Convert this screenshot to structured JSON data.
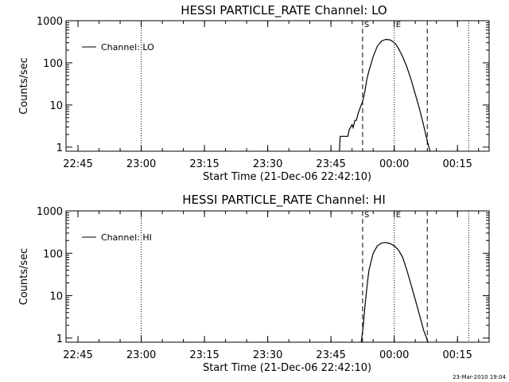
{
  "timestamp": "23-Mar-2010 19:04",
  "chart_data": [
    {
      "type": "line",
      "title": "HESSI PARTICLE_RATE Channel: LO",
      "xlabel": "Start Time (21-Dec-06 22:42:10)",
      "ylabel": "Counts/sec",
      "yscale": "log",
      "ylim": [
        0.8,
        1000
      ],
      "xlim": [
        "22:42:10",
        "00:22:30"
      ],
      "xticks": [
        "22:45",
        "23:00",
        "23:15",
        "23:30",
        "23:45",
        "00:00",
        "00:15"
      ],
      "yticks": [
        "1",
        "10",
        "100",
        "1000"
      ],
      "legend": {
        "position": "top-left",
        "entries": [
          "Channel: LO"
        ]
      },
      "grid": false,
      "markers": [
        {
          "label": "S",
          "time": "23:52:30",
          "style": "dashed"
        },
        {
          "label": "E",
          "time": "00:00:00",
          "style": "dotted"
        },
        {
          "time": "00:07:50",
          "style": "dashed"
        },
        {
          "time": "23:00:00",
          "style": "dotted"
        },
        {
          "time": "00:17:40",
          "style": "dotted"
        }
      ],
      "series": [
        {
          "name": "Channel: LO",
          "x": [
            "23:47:00",
            "23:47:10",
            "23:49:00",
            "23:49:20",
            "23:50:00",
            "23:50:15",
            "23:50:40",
            "23:51:00",
            "23:51:30",
            "23:52:00",
            "23:52:30",
            "23:53:00",
            "23:53:30",
            "23:54:00",
            "23:55:00",
            "23:56:00",
            "23:57:00",
            "23:58:00",
            "23:59:00",
            "23:59:40",
            "00:00:20",
            "00:01:00",
            "00:02:00",
            "00:03:00",
            "00:04:00",
            "00:05:00",
            "00:06:00",
            "00:07:00",
            "00:08:00",
            "00:08:30"
          ],
          "values": [
            0.8,
            1.8,
            1.8,
            2.6,
            3.4,
            2.9,
            4.3,
            4.3,
            6.6,
            9.0,
            12,
            20,
            40,
            65,
            140,
            250,
            330,
            360,
            350,
            320,
            280,
            220,
            140,
            80,
            40,
            18,
            8,
            3.2,
            1.2,
            0.8
          ]
        }
      ]
    },
    {
      "type": "line",
      "title": "HESSI PARTICLE_RATE Channel: HI",
      "xlabel": "Start Time (21-Dec-06 22:42:10)",
      "ylabel": "Counts/sec",
      "yscale": "log",
      "ylim": [
        0.8,
        1000
      ],
      "xlim": [
        "22:42:10",
        "00:22:30"
      ],
      "xticks": [
        "22:45",
        "23:00",
        "23:15",
        "23:30",
        "23:45",
        "00:00",
        "00:15"
      ],
      "yticks": [
        "1",
        "10",
        "100",
        "1000"
      ],
      "legend": {
        "position": "top-left",
        "entries": [
          "Channel: HI"
        ]
      },
      "grid": false,
      "markers": [
        {
          "label": "S",
          "time": "23:52:30",
          "style": "dashed"
        },
        {
          "label": "E",
          "time": "00:00:00",
          "style": "dotted"
        },
        {
          "time": "00:07:50",
          "style": "dashed"
        },
        {
          "time": "23:00:00",
          "style": "dotted"
        },
        {
          "time": "00:17:40",
          "style": "dotted"
        }
      ],
      "series": [
        {
          "name": "Channel: HI",
          "x": [
            "23:52:10",
            "23:52:40",
            "23:53:00",
            "23:53:30",
            "23:54:00",
            "23:55:00",
            "23:56:00",
            "23:57:00",
            "23:58:00",
            "23:59:00",
            "00:00:00",
            "00:01:00",
            "00:02:00",
            "00:03:00",
            "00:04:00",
            "00:05:00",
            "00:06:00",
            "00:07:00",
            "00:07:40",
            "00:08:00"
          ],
          "values": [
            0.8,
            2.0,
            5,
            15,
            40,
            100,
            150,
            175,
            180,
            170,
            150,
            120,
            80,
            40,
            18,
            8,
            3.5,
            1.5,
            1.0,
            0.8
          ]
        }
      ]
    }
  ]
}
